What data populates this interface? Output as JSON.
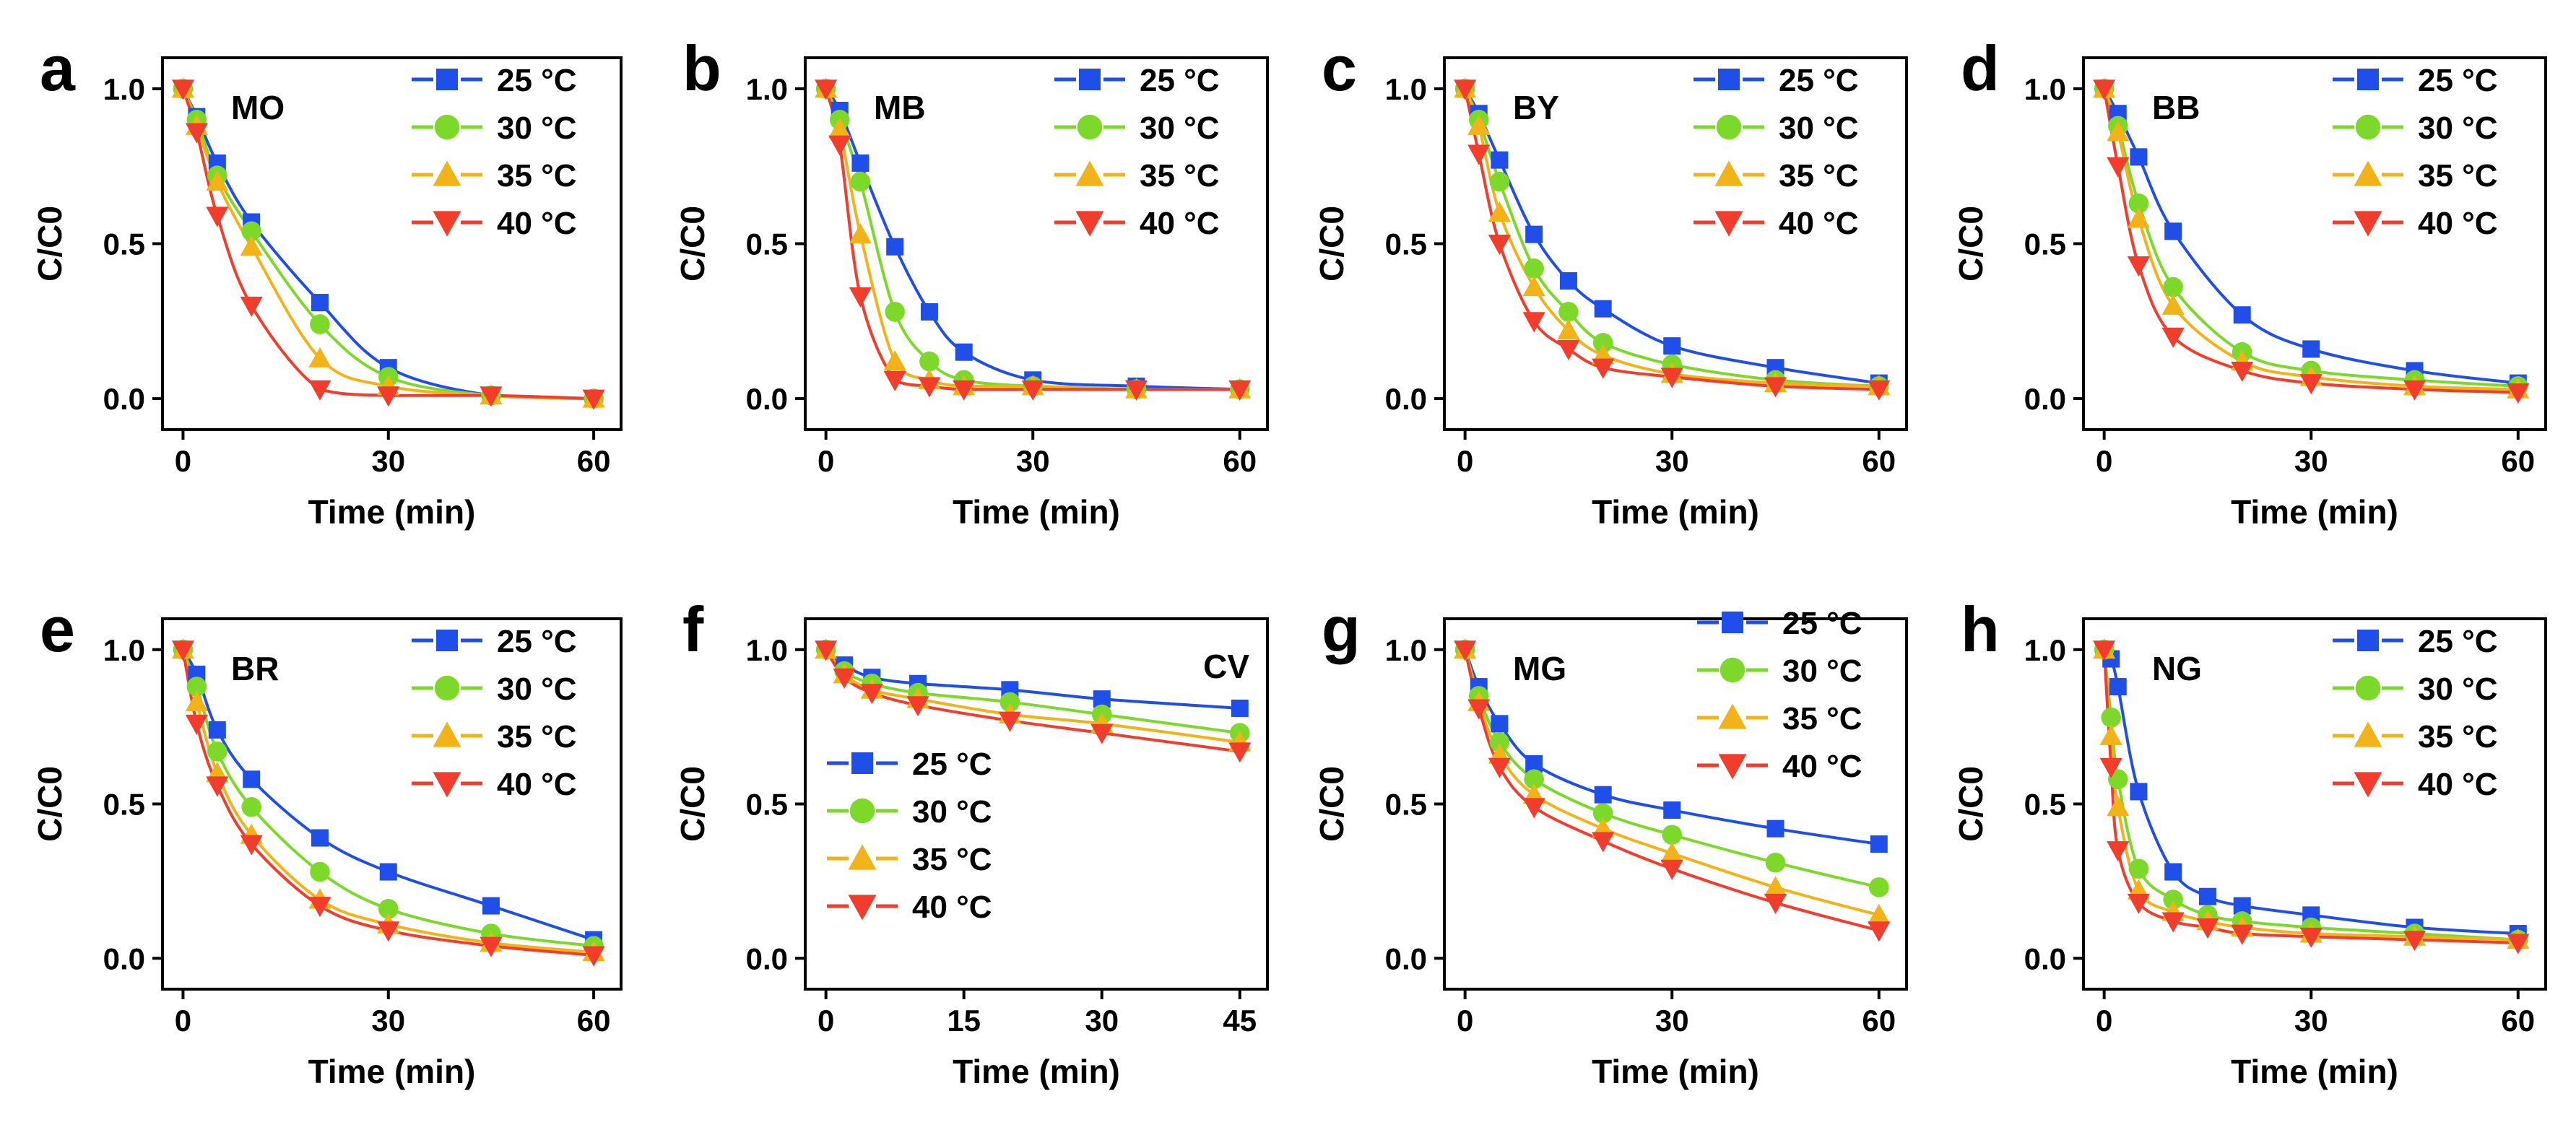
{
  "figure": {
    "series_names": [
      "25 °C",
      "30 °C",
      "35 °C",
      "40 °C"
    ],
    "colors": [
      "#1f4fe8",
      "#7cd92a",
      "#f2b318",
      "#f23c2c"
    ],
    "markers": [
      "square",
      "circle",
      "triangle-up",
      "triangle-down"
    ]
  },
  "chart_data": [
    {
      "panel": "a",
      "dye": "MO",
      "type": "line",
      "xlabel": "Time (min)",
      "ylabel": "C/C0",
      "xlim": [
        -3,
        64
      ],
      "ylim": [
        -0.1,
        1.1
      ],
      "xticks": [
        0,
        30,
        60
      ],
      "yticks": [
        0.0,
        0.5,
        1.0
      ],
      "legend": "top-right",
      "x": [
        0,
        2,
        5,
        10,
        20,
        30,
        45,
        60
      ],
      "series": [
        {
          "name": "25 °C",
          "values": [
            1.0,
            0.91,
            0.76,
            0.57,
            0.31,
            0.1,
            0.01,
            0.0
          ]
        },
        {
          "name": "30 °C",
          "values": [
            1.0,
            0.9,
            0.72,
            0.54,
            0.24,
            0.07,
            0.01,
            0.0
          ]
        },
        {
          "name": "35 °C",
          "values": [
            1.0,
            0.88,
            0.7,
            0.49,
            0.13,
            0.04,
            0.01,
            0.0
          ]
        },
        {
          "name": "40 °C",
          "values": [
            1.0,
            0.86,
            0.59,
            0.3,
            0.03,
            0.01,
            0.01,
            0.0
          ]
        }
      ]
    },
    {
      "panel": "b",
      "dye": "MB",
      "type": "line",
      "xlabel": "Time (min)",
      "ylabel": "C/C0",
      "xlim": [
        -3,
        64
      ],
      "ylim": [
        -0.1,
        1.1
      ],
      "xticks": [
        0,
        30,
        60
      ],
      "yticks": [
        0.0,
        0.5,
        1.0
      ],
      "legend": "top-right",
      "x": [
        0,
        2,
        5,
        10,
        15,
        20,
        30,
        45,
        60
      ],
      "series": [
        {
          "name": "25 °C",
          "values": [
            1.0,
            0.93,
            0.76,
            0.49,
            0.28,
            0.15,
            0.06,
            0.04,
            0.03
          ]
        },
        {
          "name": "30 °C",
          "values": [
            1.0,
            0.9,
            0.7,
            0.28,
            0.12,
            0.06,
            0.04,
            0.03,
            0.03
          ]
        },
        {
          "name": "35 °C",
          "values": [
            1.0,
            0.87,
            0.53,
            0.12,
            0.06,
            0.04,
            0.04,
            0.03,
            0.03
          ]
        },
        {
          "name": "40 °C",
          "values": [
            1.0,
            0.82,
            0.33,
            0.06,
            0.04,
            0.03,
            0.03,
            0.03,
            0.03
          ]
        }
      ]
    },
    {
      "panel": "c",
      "dye": "BY",
      "type": "line",
      "xlabel": "Time (min)",
      "ylabel": "C/C0",
      "xlim": [
        -3,
        64
      ],
      "ylim": [
        -0.1,
        1.1
      ],
      "xticks": [
        0,
        30,
        60
      ],
      "yticks": [
        0.0,
        0.5,
        1.0
      ],
      "legend": "top-right",
      "x": [
        0,
        2,
        5,
        10,
        15,
        20,
        30,
        45,
        60
      ],
      "series": [
        {
          "name": "25 °C",
          "values": [
            1.0,
            0.92,
            0.77,
            0.53,
            0.38,
            0.29,
            0.17,
            0.1,
            0.05
          ]
        },
        {
          "name": "30 °C",
          "values": [
            1.0,
            0.9,
            0.7,
            0.42,
            0.28,
            0.18,
            0.11,
            0.06,
            0.04
          ]
        },
        {
          "name": "35 °C",
          "values": [
            1.0,
            0.88,
            0.6,
            0.36,
            0.22,
            0.14,
            0.08,
            0.05,
            0.04
          ]
        },
        {
          "name": "40 °C",
          "values": [
            1.0,
            0.79,
            0.5,
            0.25,
            0.16,
            0.1,
            0.07,
            0.04,
            0.03
          ]
        }
      ]
    },
    {
      "panel": "d",
      "dye": "BB",
      "type": "line",
      "xlabel": "Time (min)",
      "ylabel": "C/C0",
      "xlim": [
        -3,
        64
      ],
      "ylim": [
        -0.1,
        1.1
      ],
      "xticks": [
        0,
        30,
        60
      ],
      "yticks": [
        0.0,
        0.5,
        1.0
      ],
      "legend": "top-right",
      "x": [
        0,
        2,
        5,
        10,
        20,
        30,
        45,
        60
      ],
      "series": [
        {
          "name": "25 °C",
          "values": [
            1.0,
            0.92,
            0.78,
            0.54,
            0.27,
            0.16,
            0.09,
            0.05
          ]
        },
        {
          "name": "30 °C",
          "values": [
            1.0,
            0.88,
            0.63,
            0.36,
            0.15,
            0.09,
            0.06,
            0.04
          ]
        },
        {
          "name": "35 °C",
          "values": [
            1.0,
            0.86,
            0.58,
            0.3,
            0.12,
            0.07,
            0.04,
            0.03
          ]
        },
        {
          "name": "40 °C",
          "values": [
            1.0,
            0.75,
            0.43,
            0.2,
            0.09,
            0.05,
            0.03,
            0.02
          ]
        }
      ]
    },
    {
      "panel": "e",
      "dye": "BR",
      "type": "line",
      "xlabel": "Time (min)",
      "ylabel": "C/C0",
      "xlim": [
        -3,
        64
      ],
      "ylim": [
        -0.1,
        1.1
      ],
      "xticks": [
        0,
        30,
        60
      ],
      "yticks": [
        0.0,
        0.5,
        1.0
      ],
      "legend": "top-right",
      "x": [
        0,
        2,
        5,
        10,
        20,
        30,
        45,
        60
      ],
      "series": [
        {
          "name": "25 °C",
          "values": [
            1.0,
            0.92,
            0.74,
            0.58,
            0.39,
            0.28,
            0.17,
            0.06
          ]
        },
        {
          "name": "30 °C",
          "values": [
            1.0,
            0.88,
            0.67,
            0.49,
            0.28,
            0.16,
            0.08,
            0.04
          ]
        },
        {
          "name": "35 °C",
          "values": [
            1.0,
            0.83,
            0.6,
            0.4,
            0.19,
            0.11,
            0.05,
            0.02
          ]
        },
        {
          "name": "40 °C",
          "values": [
            1.0,
            0.76,
            0.56,
            0.37,
            0.17,
            0.09,
            0.04,
            0.01
          ]
        }
      ]
    },
    {
      "panel": "f",
      "dye": "CV",
      "type": "line",
      "xlabel": "Time (min)",
      "ylabel": "C/C0",
      "xlim": [
        -2.25,
        48
      ],
      "ylim": [
        -0.1,
        1.1
      ],
      "xticks": [
        0,
        15,
        30,
        45
      ],
      "yticks": [
        0.0,
        0.5,
        1.0
      ],
      "legend": "bottom-left",
      "x": [
        0,
        2,
        5,
        10,
        20,
        30,
        45
      ],
      "series": [
        {
          "name": "25 °C",
          "values": [
            1.0,
            0.95,
            0.91,
            0.89,
            0.87,
            0.84,
            0.81
          ]
        },
        {
          "name": "30 °C",
          "values": [
            1.0,
            0.93,
            0.89,
            0.86,
            0.83,
            0.79,
            0.73
          ]
        },
        {
          "name": "35 °C",
          "values": [
            1.0,
            0.92,
            0.87,
            0.84,
            0.79,
            0.76,
            0.7
          ]
        },
        {
          "name": "40 °C",
          "values": [
            1.0,
            0.91,
            0.86,
            0.82,
            0.77,
            0.73,
            0.67
          ]
        }
      ]
    },
    {
      "panel": "g",
      "dye": "MG",
      "type": "line",
      "xlabel": "Time (min)",
      "ylabel": "C/C0",
      "xlim": [
        -3,
        64
      ],
      "ylim": [
        -0.1,
        1.1
      ],
      "xticks": [
        0,
        30,
        60
      ],
      "yticks": [
        0.0,
        0.5,
        1.0
      ],
      "legend": "top-right",
      "x": [
        0,
        2,
        5,
        10,
        20,
        30,
        45,
        60
      ],
      "series": [
        {
          "name": "25 °C",
          "values": [
            1.0,
            0.88,
            0.76,
            0.63,
            0.53,
            0.48,
            0.42,
            0.37
          ]
        },
        {
          "name": "30 °C",
          "values": [
            1.0,
            0.85,
            0.7,
            0.58,
            0.47,
            0.4,
            0.31,
            0.23
          ]
        },
        {
          "name": "35 °C",
          "values": [
            1.0,
            0.83,
            0.66,
            0.53,
            0.42,
            0.34,
            0.23,
            0.14
          ]
        },
        {
          "name": "40 °C",
          "values": [
            1.0,
            0.81,
            0.62,
            0.49,
            0.38,
            0.29,
            0.18,
            0.09
          ]
        }
      ]
    },
    {
      "panel": "h",
      "dye": "NG",
      "type": "line",
      "xlabel": "Time (min)",
      "ylabel": "C/C0",
      "xlim": [
        -3,
        64
      ],
      "ylim": [
        -0.1,
        1.1
      ],
      "xticks": [
        0,
        30,
        60
      ],
      "yticks": [
        0.0,
        0.5,
        1.0
      ],
      "legend": "top-right",
      "x": [
        0,
        1,
        2,
        5,
        10,
        15,
        20,
        30,
        45,
        60
      ],
      "series": [
        {
          "name": "25 °C",
          "values": [
            1.0,
            0.97,
            0.88,
            0.54,
            0.28,
            0.2,
            0.17,
            0.14,
            0.1,
            0.08
          ]
        },
        {
          "name": "30 °C",
          "values": [
            1.0,
            0.78,
            0.58,
            0.29,
            0.19,
            0.14,
            0.12,
            0.1,
            0.08,
            0.06
          ]
        },
        {
          "name": "35 °C",
          "values": [
            1.0,
            0.72,
            0.49,
            0.22,
            0.15,
            0.12,
            0.1,
            0.08,
            0.07,
            0.06
          ]
        },
        {
          "name": "40 °C",
          "values": [
            1.0,
            0.62,
            0.35,
            0.18,
            0.12,
            0.1,
            0.08,
            0.07,
            0.06,
            0.05
          ]
        }
      ]
    }
  ]
}
